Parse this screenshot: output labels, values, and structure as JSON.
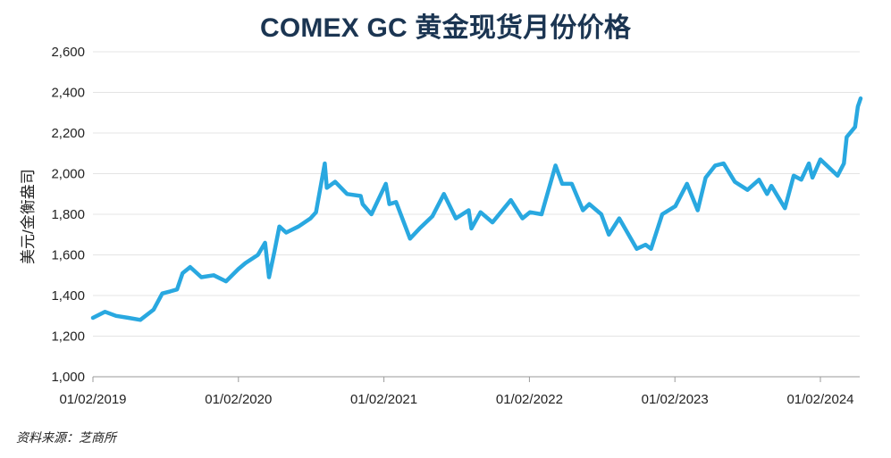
{
  "chart_data": {
    "type": "line",
    "title": "COMEX GC 黄金现货月份价格",
    "ylabel": "美元/金衡盎司",
    "xlabel": "",
    "ylim": [
      1000,
      2600
    ],
    "y_ticks": [
      "1,000",
      "1,200",
      "1,400",
      "1,600",
      "1,800",
      "2,000",
      "2,200",
      "2,400",
      "2,600"
    ],
    "x_ticks": [
      "01/02/2019",
      "01/02/2020",
      "01/02/2021",
      "01/02/2022",
      "01/02/2023",
      "01/02/2024"
    ],
    "grid": true,
    "series": [
      {
        "color": "#29a8e0",
        "x": [
          "2019-01-02",
          "2019-02-01",
          "2019-03-01",
          "2019-04-01",
          "2019-05-01",
          "2019-06-03",
          "2019-06-25",
          "2019-07-15",
          "2019-08-01",
          "2019-08-15",
          "2019-09-03",
          "2019-10-01",
          "2019-11-01",
          "2019-12-02",
          "2020-01-02",
          "2020-01-20",
          "2020-02-20",
          "2020-03-09",
          "2020-03-19",
          "2020-04-01",
          "2020-04-14",
          "2020-05-01",
          "2020-06-01",
          "2020-07-01",
          "2020-07-15",
          "2020-08-06",
          "2020-08-11",
          "2020-09-01",
          "2020-10-01",
          "2020-11-04",
          "2020-11-09",
          "2020-12-01",
          "2021-01-06",
          "2021-01-15",
          "2021-02-01",
          "2021-03-08",
          "2021-04-01",
          "2021-05-03",
          "2021-06-01",
          "2021-07-01",
          "2021-08-02",
          "2021-08-09",
          "2021-09-01",
          "2021-10-01",
          "2021-11-16",
          "2021-12-15",
          "2022-01-03",
          "2022-02-01",
          "2022-03-08",
          "2022-03-25",
          "2022-04-18",
          "2022-05-16",
          "2022-06-01",
          "2022-07-01",
          "2022-07-20",
          "2022-08-15",
          "2022-09-28",
          "2022-10-20",
          "2022-11-03",
          "2022-12-01",
          "2023-01-03",
          "2023-02-01",
          "2023-02-28",
          "2023-03-20",
          "2023-04-13",
          "2023-05-04",
          "2023-06-01",
          "2023-07-03",
          "2023-08-01",
          "2023-08-21",
          "2023-09-01",
          "2023-10-05",
          "2023-10-27",
          "2023-11-15",
          "2023-12-04",
          "2023-12-13",
          "2024-01-02",
          "2024-02-14",
          "2024-03-01",
          "2024-03-08",
          "2024-03-29",
          "2024-04-05",
          "2024-04-12"
        ],
        "values": [
          1290,
          1320,
          1300,
          1290,
          1280,
          1330,
          1410,
          1420,
          1430,
          1510,
          1540,
          1490,
          1500,
          1470,
          1530,
          1560,
          1600,
          1660,
          1490,
          1610,
          1740,
          1710,
          1740,
          1780,
          1810,
          2050,
          1930,
          1960,
          1900,
          1890,
          1850,
          1800,
          1950,
          1850,
          1860,
          1680,
          1730,
          1790,
          1900,
          1780,
          1820,
          1730,
          1810,
          1760,
          1870,
          1780,
          1810,
          1800,
          2040,
          1950,
          1950,
          1820,
          1850,
          1800,
          1700,
          1780,
          1630,
          1650,
          1630,
          1800,
          1840,
          1950,
          1820,
          1980,
          2040,
          2050,
          1960,
          1920,
          1970,
          1900,
          1940,
          1830,
          1990,
          1970,
          2050,
          1980,
          2070,
          1990,
          2050,
          2180,
          2230,
          2330,
          2370
        ]
      }
    ]
  },
  "source_note": "资料来源：芝商所"
}
